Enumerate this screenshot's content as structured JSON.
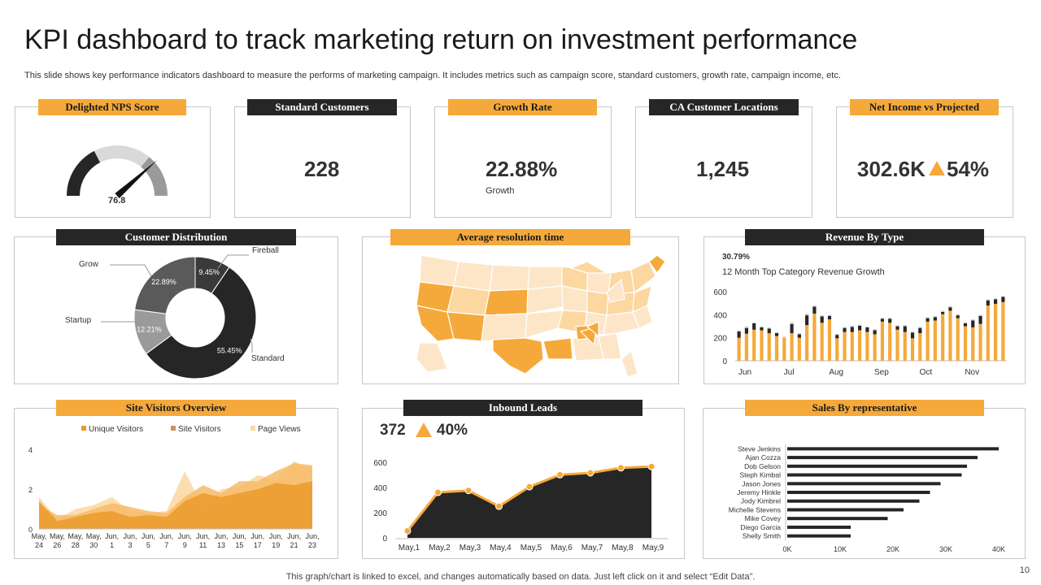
{
  "slide": {
    "title": "KPI dashboard to track marketing return on investment performance",
    "subtitle": "This slide shows key performance indicators dashboard to measure the performs of marketing campaign. It includes metrics such as campaign score, standard customers, growth rate, campaign income, etc.",
    "footnote": "This graph/chart is linked to excel,  and changes automatically based on data. Just left click on it and select “Edit Data”.",
    "page_number": "10"
  },
  "colors": {
    "orange": "#f5a93a",
    "dark": "#262626",
    "gray": "#5a5a5a",
    "light_gray": "#9a9a9a"
  },
  "kpis": {
    "nps": {
      "header": "Delighted NPS Score",
      "value": "76.8"
    },
    "standard_customers": {
      "header": "Standard Customers",
      "value": "228"
    },
    "growth_rate": {
      "header": "Growth Rate",
      "value": "22.88%",
      "caption": "Growth"
    },
    "ca_locations": {
      "header": "CA Customer Locations",
      "value": "1,245"
    },
    "net_income": {
      "header": "Net Income vs Projected",
      "value": "302.6K",
      "change": "54%",
      "trend_icon": "up-triangle-icon"
    }
  },
  "panels": {
    "customer_distribution": "Customer Distribution",
    "avg_resolution": "Average resolution time",
    "revenue_by_type": "Revenue By Type",
    "site_visitors": "Site Visitors Overview",
    "inbound_leads": "Inbound Leads",
    "sales_by_rep": "Sales By representative"
  },
  "revenue_annotation": {
    "value": "30.79%",
    "label": "12 Month Top Category Revenue Growth"
  },
  "inbound_kpi": {
    "value": "372",
    "change": "40%",
    "trend_icon": "up-triangle-icon"
  },
  "chart_data": [
    {
      "id": "nps_gauge",
      "type": "gauge",
      "value": 76.8,
      "range": [
        0,
        100
      ]
    },
    {
      "id": "customer_distribution",
      "type": "pie",
      "donut": true,
      "slices": [
        {
          "name": "Standard",
          "value": 55.45,
          "label": "55.45%",
          "color": "#262626"
        },
        {
          "name": "Startup",
          "value": 12.21,
          "label": "12.21%",
          "color": "#9a9a9a"
        },
        {
          "name": "Grow",
          "value": 22.89,
          "label": "22.89%",
          "color": "#5a5a5a"
        },
        {
          "name": "Fireball",
          "value": 9.45,
          "label": "9.45%",
          "color": "#3a3a3a"
        }
      ]
    },
    {
      "id": "revenue_by_type",
      "type": "bar",
      "stacked": true,
      "xlabels": [
        "Jun",
        "Jul",
        "Aug",
        "Sep",
        "Oct",
        "Nov"
      ],
      "yticks": [
        "0",
        "200",
        "400",
        "600"
      ],
      "ylim": [
        0,
        650
      ],
      "series": [
        {
          "color": "#f5a93a",
          "values": [
            200,
            235,
            270,
            265,
            240,
            215,
            200,
            240,
            200,
            310,
            410,
            330,
            360,
            195,
            250,
            250,
            265,
            250,
            230,
            340,
            330,
            270,
            250,
            195,
            240,
            340,
            350,
            405,
            435,
            370,
            300,
            290,
            320,
            480,
            495,
            510
          ]
        },
        {
          "color": "#262626",
          "values": [
            55,
            50,
            55,
            25,
            40,
            25,
            0,
            80,
            30,
            85,
            60,
            55,
            30,
            30,
            35,
            45,
            40,
            40,
            35,
            25,
            35,
            30,
            50,
            50,
            45,
            30,
            30,
            20,
            30,
            25,
            25,
            60,
            70,
            45,
            40,
            45
          ]
        },
        {
          "color": "#cfcfcf",
          "values": [
            10,
            15,
            10,
            10,
            10,
            8,
            10,
            15,
            10,
            15,
            10,
            10,
            10,
            10,
            10,
            10,
            10,
            8,
            10,
            10,
            10,
            8,
            10,
            10,
            10,
            10,
            10,
            10,
            10,
            10,
            10,
            10,
            10,
            10,
            10,
            10
          ]
        }
      ]
    },
    {
      "id": "site_visitors",
      "type": "area",
      "legend": [
        "Unique Visitors",
        "Site Visitors",
        "Page Views"
      ],
      "x": [
        "May, 24",
        "May, 26",
        "May, 28",
        "May, 30",
        "Jun, 1",
        "Jun, 3",
        "Jun, 5",
        "Jun, 7",
        "Jun, 9",
        "Jun, 11",
        "Jun, 13",
        "Jun, 15",
        "Jun, 17",
        "Jun, 19",
        "Jun, 21",
        "Jun, 23"
      ],
      "yticks": [
        "0",
        "2",
        "4"
      ],
      "ylim": [
        0,
        4
      ],
      "series": [
        {
          "name": "Page Views",
          "color": "#fcd7a0",
          "values": [
            1.6,
            0.5,
            1.0,
            1.2,
            1.6,
            0.9,
            0.8,
            0.9,
            2.9,
            1.1,
            2.0,
            2.1,
            2.7,
            2.5,
            3.4,
            3.0
          ]
        },
        {
          "name": "Site Visitors",
          "color": "#f7bb68",
          "values": [
            1.2,
            0.7,
            0.7,
            1.0,
            1.3,
            1.1,
            0.9,
            0.8,
            1.6,
            2.2,
            1.8,
            2.4,
            2.4,
            2.9,
            3.3,
            3.2
          ]
        },
        {
          "name": "Unique Visitors",
          "color": "#eb9a2a",
          "values": [
            1.4,
            0.4,
            0.6,
            0.8,
            0.9,
            0.6,
            0.7,
            0.6,
            1.4,
            1.8,
            1.6,
            1.8,
            2.0,
            2.3,
            2.2,
            2.4
          ]
        }
      ]
    },
    {
      "id": "inbound_leads",
      "type": "area",
      "x": [
        "May,1",
        "May,2",
        "May,3",
        "May,4",
        "May,5",
        "May,6",
        "May,7",
        "May,8",
        "May,9"
      ],
      "yticks": [
        "0",
        "200",
        "400",
        "600"
      ],
      "ylim": [
        0,
        650
      ],
      "values": [
        55,
        360,
        375,
        250,
        405,
        500,
        515,
        555,
        565
      ]
    },
    {
      "id": "sales_by_rep",
      "type": "bar",
      "orientation": "horizontal",
      "categories": [
        "Steve Jenkins",
        "Ajan Cozza",
        "Dob Gelson",
        "Steph Kimbal",
        "Jason Jones",
        "Jeremy Hinkle",
        "Jody Kimbrel",
        "Michelle Stevens",
        "Mike Covey",
        "Diego Garcia",
        "Shelly Smith"
      ],
      "values": [
        40000,
        36000,
        34000,
        33000,
        29000,
        27000,
        25000,
        22000,
        19000,
        12000,
        12000
      ],
      "xticks": [
        "0K",
        "10K",
        "20K",
        "30K",
        "40K"
      ],
      "xlim": [
        0,
        40000
      ]
    }
  ]
}
